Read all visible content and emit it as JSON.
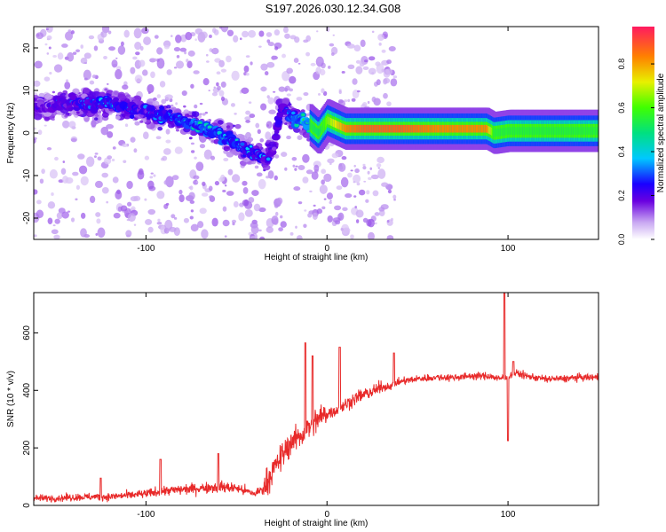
{
  "title": "S197.2026.030.12.34.G08",
  "chart_data": [
    {
      "type": "heatmap",
      "name": "spectrogram",
      "xlabel": "Height of straight line (km)",
      "ylabel": "Frequency (Hz)",
      "xlim": [
        -162,
        150
      ],
      "ylim": [
        -25,
        25
      ],
      "xticks": [
        -100,
        0,
        100
      ],
      "yticks": [
        -20,
        -10,
        0,
        10,
        20
      ],
      "colorbar": {
        "label": "Normalized spectral amplitude",
        "range": [
          0.0,
          0.97
        ],
        "ticks": [
          0.0,
          0.2,
          0.4,
          0.6,
          0.8
        ]
      },
      "ridge": {
        "x": [
          -160,
          -140,
          -120,
          -100,
          -80,
          -60,
          -45,
          -35,
          -30,
          -25,
          -20,
          -15,
          -10,
          -5,
          0,
          5,
          10,
          20,
          40,
          60,
          80,
          88,
          92,
          100,
          120,
          150
        ],
        "freq": [
          6,
          7,
          7,
          5,
          3,
          0,
          -4,
          -6,
          -4,
          6,
          4,
          3,
          2,
          0,
          3,
          2,
          1,
          1,
          1,
          1,
          1,
          1,
          0,
          0.5,
          0.5,
          0.5
        ],
        "amplitude": [
          0.3,
          0.35,
          0.4,
          0.35,
          0.45,
          0.5,
          0.4,
          0.35,
          0.3,
          0.35,
          0.45,
          0.5,
          0.6,
          0.55,
          0.7,
          0.8,
          0.9,
          0.95,
          0.95,
          0.9,
          0.9,
          0.9,
          0.6,
          0.6,
          0.6,
          0.6
        ]
      }
    },
    {
      "type": "line",
      "name": "snr",
      "xlabel": "Height of straight line (km)",
      "ylabel": "SNR (10 * v/v)",
      "xlim": [
        -162,
        150
      ],
      "ylim": [
        0,
        740
      ],
      "xticks": [
        -100,
        0,
        100
      ],
      "yticks": [
        0,
        200,
        400,
        600
      ],
      "color": "#e82a2a",
      "x": [
        -162,
        -150,
        -140,
        -130,
        -120,
        -110,
        -100,
        -90,
        -80,
        -70,
        -60,
        -50,
        -45,
        -40,
        -35,
        -30,
        -25,
        -20,
        -15,
        -10,
        -5,
        0,
        5,
        10,
        15,
        20,
        25,
        30,
        35,
        40,
        50,
        60,
        70,
        80,
        90,
        95,
        100,
        105,
        110,
        120,
        130,
        140,
        150
      ],
      "y": [
        25,
        25,
        28,
        30,
        30,
        35,
        40,
        50,
        55,
        60,
        65,
        60,
        50,
        40,
        60,
        120,
        170,
        220,
        240,
        270,
        300,
        320,
        330,
        350,
        370,
        385,
        395,
        410,
        415,
        430,
        440,
        445,
        445,
        450,
        450,
        440,
        450,
        460,
        450,
        440,
        440,
        445,
        445
      ],
      "spikes": [
        {
          "x": -125,
          "y": 95
        },
        {
          "x": -92,
          "y": 160
        },
        {
          "x": -60,
          "y": 180
        },
        {
          "x": -12,
          "y": 565
        },
        {
          "x": -8,
          "y": 520
        },
        {
          "x": 7,
          "y": 550
        },
        {
          "x": 37,
          "y": 530
        },
        {
          "x": 98,
          "y": 740
        },
        {
          "x": 100,
          "y": 225
        },
        {
          "x": 103,
          "y": 500
        }
      ]
    }
  ]
}
